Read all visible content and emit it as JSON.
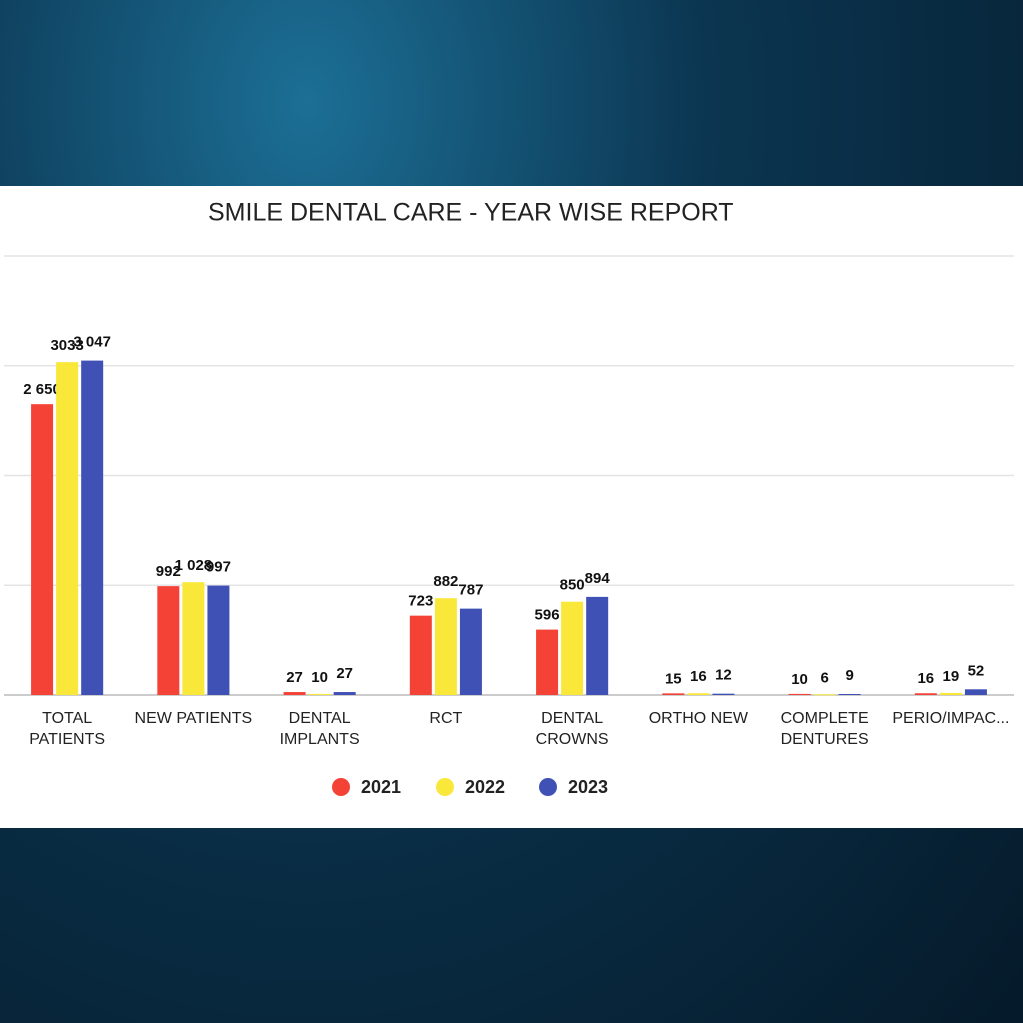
{
  "chart_data": {
    "type": "bar",
    "title": "SMILE DENTAL CARE - YEAR WISE REPORT",
    "categories": [
      "TOTAL\nPATIENTS",
      "NEW PATIENTS",
      "DENTAL\nIMPLANTS",
      "RCT",
      "DENTAL\nCROWNS",
      "ORTHO NEW",
      "COMPLETE\nDENTURES",
      "PERIO/IMPAC..."
    ],
    "series": [
      {
        "name": "2021",
        "color": "#f44336",
        "values": [
          2650,
          992,
          27,
          723,
          596,
          15,
          10,
          16
        ],
        "value_labels": [
          "2 650",
          "992",
          "27",
          "723",
          "596",
          "15",
          "10",
          "16"
        ]
      },
      {
        "name": "2022",
        "color": "#f9e83a",
        "values": [
          3033,
          1028,
          10,
          882,
          850,
          16,
          6,
          19
        ],
        "value_labels": [
          "3033",
          "1 028",
          "10",
          "882",
          "850",
          "16",
          "6",
          "19"
        ]
      },
      {
        "name": "2023",
        "color": "#3f51b5",
        "values": [
          3047,
          997,
          27,
          787,
          894,
          12,
          9,
          52
        ],
        "value_labels": [
          "3 047",
          "997",
          "27",
          "787",
          "894",
          "12",
          "9",
          "52"
        ]
      }
    ],
    "ylim": [
      0,
      4000
    ],
    "yticks": [
      0,
      1000,
      2000,
      3000,
      4000
    ],
    "grid": true
  }
}
